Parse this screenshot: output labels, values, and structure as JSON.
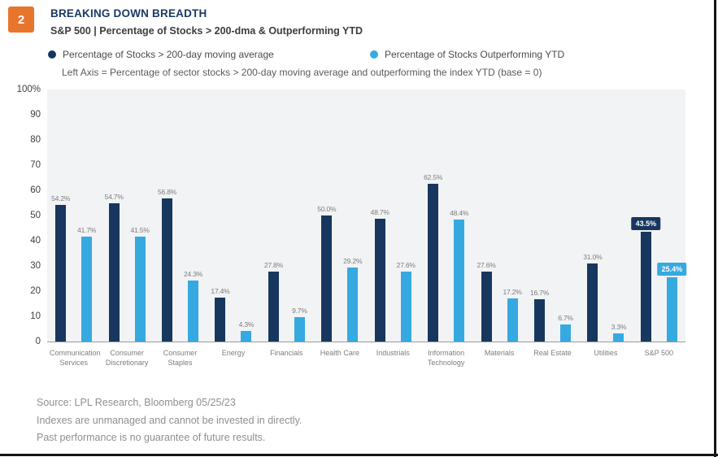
{
  "page": {
    "badge": "2",
    "title": "BREAKING DOWN BREADTH",
    "subtitle": "S&P 500 | Percentage of Stocks > 200-dma & Outperforming YTD",
    "axis_note": "Left Axis = Percentage of sector stocks > 200-day moving average and outperforming the index YTD (base = 0)"
  },
  "legend": [
    {
      "label": "Percentage of Stocks > 200-day moving average",
      "color": "#17375E"
    },
    {
      "label": "Percentage of Stocks Outperforming YTD",
      "color": "#36A9E1"
    }
  ],
  "chart_data": {
    "type": "bar",
    "title": "BREAKING DOWN BREADTH",
    "subtitle": "S&P 500 | Percentage of Stocks > 200-dma & Outperforming YTD",
    "xlabel": "",
    "ylabel": "Percentage of sector stocks > 200-day moving average and outperforming the index YTD (base = 0)",
    "ylim": [
      0,
      100
    ],
    "y_ticks": [
      "100%",
      "90",
      "80",
      "70",
      "60",
      "50",
      "40",
      "30",
      "20",
      "10",
      "0"
    ],
    "grid": false,
    "legend_position": "top",
    "categories": [
      "Communication Services",
      "Consumer Discretionary",
      "Consumer Staples",
      "Energy",
      "Financials",
      "Health Care",
      "Industrials",
      "Information Technology",
      "Materials",
      "Real Estate",
      "Utilities",
      "S&P 500"
    ],
    "series": [
      {
        "name": "Percentage of Stocks > 200-day moving average",
        "color": "#17375E",
        "values": [
          54.2,
          54.7,
          56.8,
          17.4,
          27.8,
          50.0,
          48.7,
          62.5,
          27.6,
          16.7,
          31.0,
          43.5
        ]
      },
      {
        "name": "Percentage of Stocks Outperforming YTD",
        "color": "#36A9E1",
        "values": [
          41.7,
          41.5,
          24.3,
          4.3,
          9.7,
          29.2,
          27.6,
          48.4,
          17.2,
          6.7,
          3.3,
          25.4
        ]
      }
    ],
    "highlight_category": "S&P 500",
    "value_label_format": "{value}%"
  },
  "footer": {
    "source": "Source: LPL Research, Bloomberg  05/25/23",
    "disclaimer1": "Indexes are unmanaged and cannot be invested in directly.",
    "disclaimer2": "Past performance is no guarantee of future results."
  },
  "colors": {
    "navy": "#17375E",
    "light_blue": "#36A9E1",
    "badge_orange": "#E8752C",
    "plot_background": "#F2F3F5",
    "title_navy": "#1B3A66"
  }
}
